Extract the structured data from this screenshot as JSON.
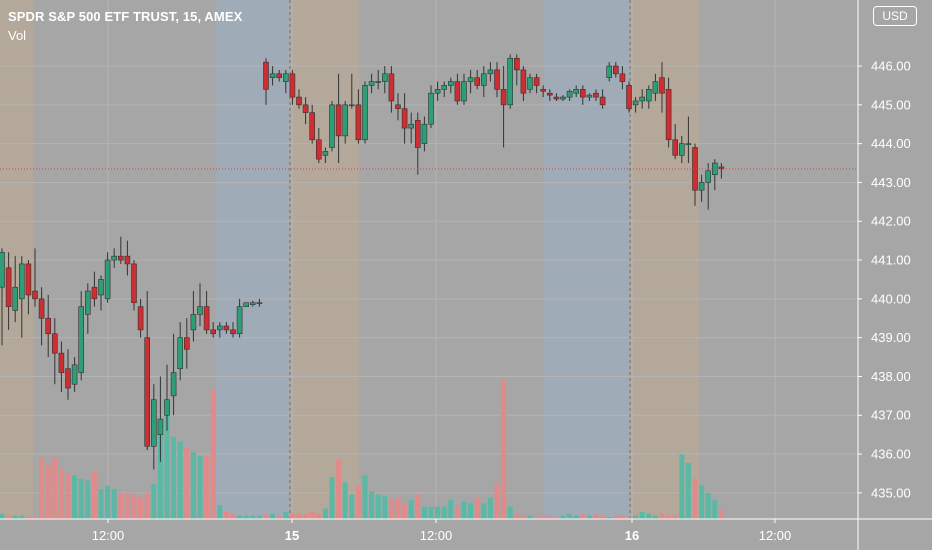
{
  "header": {
    "title": "SPDR S&P 500 ETF TRUST, 15, AMEX",
    "volume_label": "Vol"
  },
  "currency": "USD",
  "colors": {
    "up": "#2e9e76",
    "down": "#cc2e32",
    "up_vol": "#5bb8a4",
    "down_vol": "#e08a8a",
    "session_pre": "#b5a898",
    "session_post": "#9eacba",
    "current_line": "#d94545"
  },
  "chart_data": {
    "type": "candlestick",
    "title": "SPDR S&P 500 ETF TRUST, 15, AMEX",
    "y_axis": {
      "ylim": [
        434.3,
        447.5
      ],
      "ticks": [
        "446.00",
        "445.00",
        "444.00",
        "443.00",
        "442.00",
        "441.00",
        "440.00",
        "439.00",
        "438.00",
        "437.00",
        "436.00",
        "435.00"
      ]
    },
    "x_axis": {
      "labels": [
        "12:00",
        "15",
        "12:00",
        "16",
        "12:00"
      ]
    },
    "current_price": 443.35,
    "grid": true,
    "ohlc": [
      [
        440.3,
        441.3,
        438.8,
        441.2
      ],
      [
        440.8,
        441.2,
        439.2,
        439.8
      ],
      [
        439.7,
        441.1,
        439.4,
        440.3
      ],
      [
        440.0,
        441.1,
        439.0,
        440.9
      ],
      [
        440.9,
        441.0,
        439.6,
        440.1
      ],
      [
        440.2,
        441.3,
        439.8,
        440.0
      ],
      [
        440.0,
        440.3,
        438.8,
        439.5
      ],
      [
        439.5,
        440.1,
        438.5,
        439.1
      ],
      [
        439.1,
        439.5,
        437.8,
        438.6
      ],
      [
        438.6,
        438.9,
        437.6,
        438.1
      ],
      [
        438.2,
        438.7,
        437.4,
        437.7
      ],
      [
        437.8,
        438.5,
        437.6,
        438.3
      ],
      [
        438.1,
        440.2,
        437.9,
        439.8
      ],
      [
        439.6,
        440.4,
        439.1,
        440.2
      ],
      [
        440.3,
        440.7,
        439.8,
        440.0
      ],
      [
        440.1,
        440.6,
        439.7,
        440.5
      ],
      [
        440.0,
        441.2,
        439.9,
        441.0
      ],
      [
        441.0,
        441.3,
        440.8,
        441.1
      ],
      [
        441.1,
        441.6,
        440.9,
        441.0
      ],
      [
        441.1,
        441.5,
        440.6,
        440.9
      ],
      [
        440.9,
        441.0,
        439.7,
        439.9
      ],
      [
        439.8,
        440.0,
        439.0,
        439.2
      ],
      [
        439.0,
        440.2,
        436.1,
        436.2
      ],
      [
        436.2,
        437.8,
        435.6,
        437.4
      ],
      [
        436.5,
        438.0,
        435.8,
        436.9
      ],
      [
        437.0,
        438.3,
        436.6,
        437.4
      ],
      [
        437.5,
        439.1,
        437.0,
        438.1
      ],
      [
        438.2,
        439.4,
        437.9,
        439.0
      ],
      [
        439.0,
        439.5,
        438.2,
        438.7
      ],
      [
        439.2,
        440.2,
        438.9,
        439.6
      ],
      [
        439.6,
        440.4,
        439.3,
        439.8
      ],
      [
        439.8,
        440.2,
        439.1,
        439.2
      ],
      [
        439.2,
        439.4,
        439.0,
        439.1
      ],
      [
        439.2,
        439.4,
        439.0,
        439.3
      ],
      [
        439.3,
        439.4,
        439.1,
        439.2
      ],
      [
        439.2,
        439.4,
        439.0,
        439.1
      ],
      [
        439.1,
        440.0,
        439.0,
        439.8
      ],
      [
        439.8,
        439.9,
        439.8,
        439.9
      ],
      [
        439.85,
        439.95,
        439.8,
        439.9
      ],
      [
        439.9,
        440.0,
        439.8,
        439.9
      ],
      [
        446.1,
        446.2,
        445.0,
        445.4
      ],
      [
        445.7,
        446.0,
        445.5,
        445.8
      ],
      [
        445.8,
        445.9,
        445.6,
        445.7
      ],
      [
        445.6,
        445.9,
        445.3,
        445.8
      ],
      [
        445.8,
        445.9,
        445.0,
        445.2
      ],
      [
        445.2,
        445.4,
        444.9,
        445.0
      ],
      [
        445.0,
        445.2,
        444.5,
        444.8
      ],
      [
        444.8,
        445.0,
        444.0,
        444.1
      ],
      [
        444.1,
        444.4,
        443.5,
        443.6
      ],
      [
        443.7,
        443.9,
        443.5,
        443.8
      ],
      [
        443.9,
        445.1,
        443.8,
        445.0
      ],
      [
        445.0,
        445.8,
        443.5,
        444.2
      ],
      [
        444.2,
        445.1,
        444.0,
        445.0
      ],
      [
        445.0,
        445.8,
        444.9,
        445.0
      ],
      [
        445.0,
        445.4,
        444.0,
        444.1
      ],
      [
        444.1,
        445.6,
        444.0,
        445.5
      ],
      [
        445.5,
        445.8,
        445.3,
        445.6
      ],
      [
        445.6,
        445.9,
        445.4,
        445.6
      ],
      [
        445.6,
        446.0,
        445.3,
        445.8
      ],
      [
        445.8,
        446.0,
        444.8,
        445.1
      ],
      [
        445.0,
        445.3,
        444.6,
        444.9
      ],
      [
        444.9,
        445.3,
        444.0,
        444.4
      ],
      [
        444.4,
        444.8,
        444.0,
        444.5
      ],
      [
        444.6,
        444.8,
        443.2,
        443.9
      ],
      [
        444.0,
        444.7,
        443.8,
        444.5
      ],
      [
        444.5,
        445.5,
        444.4,
        445.3
      ],
      [
        445.3,
        445.6,
        445.1,
        445.4
      ],
      [
        445.4,
        445.6,
        445.2,
        445.5
      ],
      [
        445.5,
        445.7,
        445.3,
        445.6
      ],
      [
        445.6,
        445.8,
        445.0,
        445.1
      ],
      [
        445.1,
        445.8,
        445.0,
        445.6
      ],
      [
        445.6,
        445.9,
        445.3,
        445.7
      ],
      [
        445.7,
        445.9,
        445.4,
        445.5
      ],
      [
        445.5,
        446.0,
        445.2,
        445.8
      ],
      [
        445.8,
        446.1,
        445.6,
        445.9
      ],
      [
        445.9,
        446.1,
        445.2,
        445.4
      ],
      [
        445.4,
        446.0,
        443.9,
        445.0
      ],
      [
        445.0,
        446.3,
        444.9,
        446.2
      ],
      [
        446.2,
        446.3,
        445.5,
        445.9
      ],
      [
        445.9,
        446.0,
        445.1,
        445.3
      ],
      [
        445.4,
        445.8,
        445.3,
        445.7
      ],
      [
        445.7,
        445.8,
        445.3,
        445.5
      ],
      [
        445.4,
        445.5,
        445.2,
        445.35
      ],
      [
        445.3,
        445.4,
        445.1,
        445.25
      ],
      [
        445.2,
        445.3,
        445.1,
        445.15
      ],
      [
        445.15,
        445.25,
        445.1,
        445.2
      ],
      [
        445.2,
        445.4,
        445.1,
        445.35
      ],
      [
        445.3,
        445.5,
        445.2,
        445.4
      ],
      [
        445.4,
        445.5,
        445.0,
        445.2
      ],
      [
        445.2,
        445.3,
        445.1,
        445.25
      ],
      [
        445.3,
        445.4,
        445.1,
        445.2
      ],
      [
        445.2,
        445.4,
        444.9,
        445.0
      ],
      [
        445.7,
        446.1,
        445.6,
        446.0
      ],
      [
        446.0,
        446.1,
        445.7,
        445.8
      ],
      [
        445.8,
        446.0,
        445.4,
        445.6
      ],
      [
        445.5,
        445.6,
        444.8,
        444.9
      ],
      [
        445.0,
        445.2,
        444.8,
        445.1
      ],
      [
        445.1,
        445.4,
        444.9,
        445.2
      ],
      [
        445.1,
        445.5,
        444.9,
        445.4
      ],
      [
        445.3,
        445.8,
        445.1,
        445.6
      ],
      [
        445.7,
        446.1,
        444.8,
        445.3
      ],
      [
        445.4,
        445.7,
        443.9,
        444.1
      ],
      [
        444.1,
        444.5,
        443.6,
        443.7
      ],
      [
        443.7,
        444.2,
        443.5,
        444.0
      ],
      [
        444.0,
        444.7,
        443.5,
        444.0
      ],
      [
        443.9,
        444.0,
        442.4,
        442.8
      ],
      [
        442.8,
        443.2,
        442.5,
        443.0
      ],
      [
        443.0,
        443.5,
        442.3,
        443.3
      ],
      [
        443.2,
        443.6,
        442.8,
        443.5
      ],
      [
        443.4,
        443.5,
        443.1,
        443.35
      ]
    ],
    "volume": [
      0.03,
      0.02,
      0.02,
      0.02,
      0.01,
      0.01,
      0.35,
      0.31,
      0.35,
      0.28,
      0.26,
      0.25,
      0.23,
      0.22,
      0.27,
      0.17,
      0.19,
      0.17,
      0.15,
      0.15,
      0.14,
      0.12,
      0.15,
      0.2,
      0.53,
      0.63,
      0.47,
      0.44,
      0.41,
      0.38,
      0.36,
      0.36,
      0.74,
      0.08,
      0.04,
      0.03,
      0.02,
      0.02,
      0.02,
      0.02,
      0.03,
      0.03,
      0.02,
      0.04,
      0.03,
      0.03,
      0.03,
      0.04,
      0.03,
      0.06,
      0.24,
      0.34,
      0.21,
      0.14,
      0.19,
      0.25,
      0.16,
      0.14,
      0.13,
      0.11,
      0.12,
      0.09,
      0.11,
      0.14,
      0.07,
      0.07,
      0.07,
      0.07,
      0.11,
      0.07,
      0.1,
      0.09,
      0.12,
      0.09,
      0.12,
      0.2,
      0.8,
      0.07,
      0.03,
      0.02,
      0.02,
      0.01,
      0.02,
      0.02,
      0.01,
      0.02,
      0.03,
      0.02,
      0.03,
      0.02,
      0.03,
      0.02,
      0.01,
      0.02,
      0.02,
      0.01,
      0.02,
      0.04,
      0.03,
      0.02,
      0.03,
      0.02,
      0.02,
      0.37,
      0.32,
      0.23,
      0.19,
      0.15,
      0.11,
      0.05
    ]
  }
}
